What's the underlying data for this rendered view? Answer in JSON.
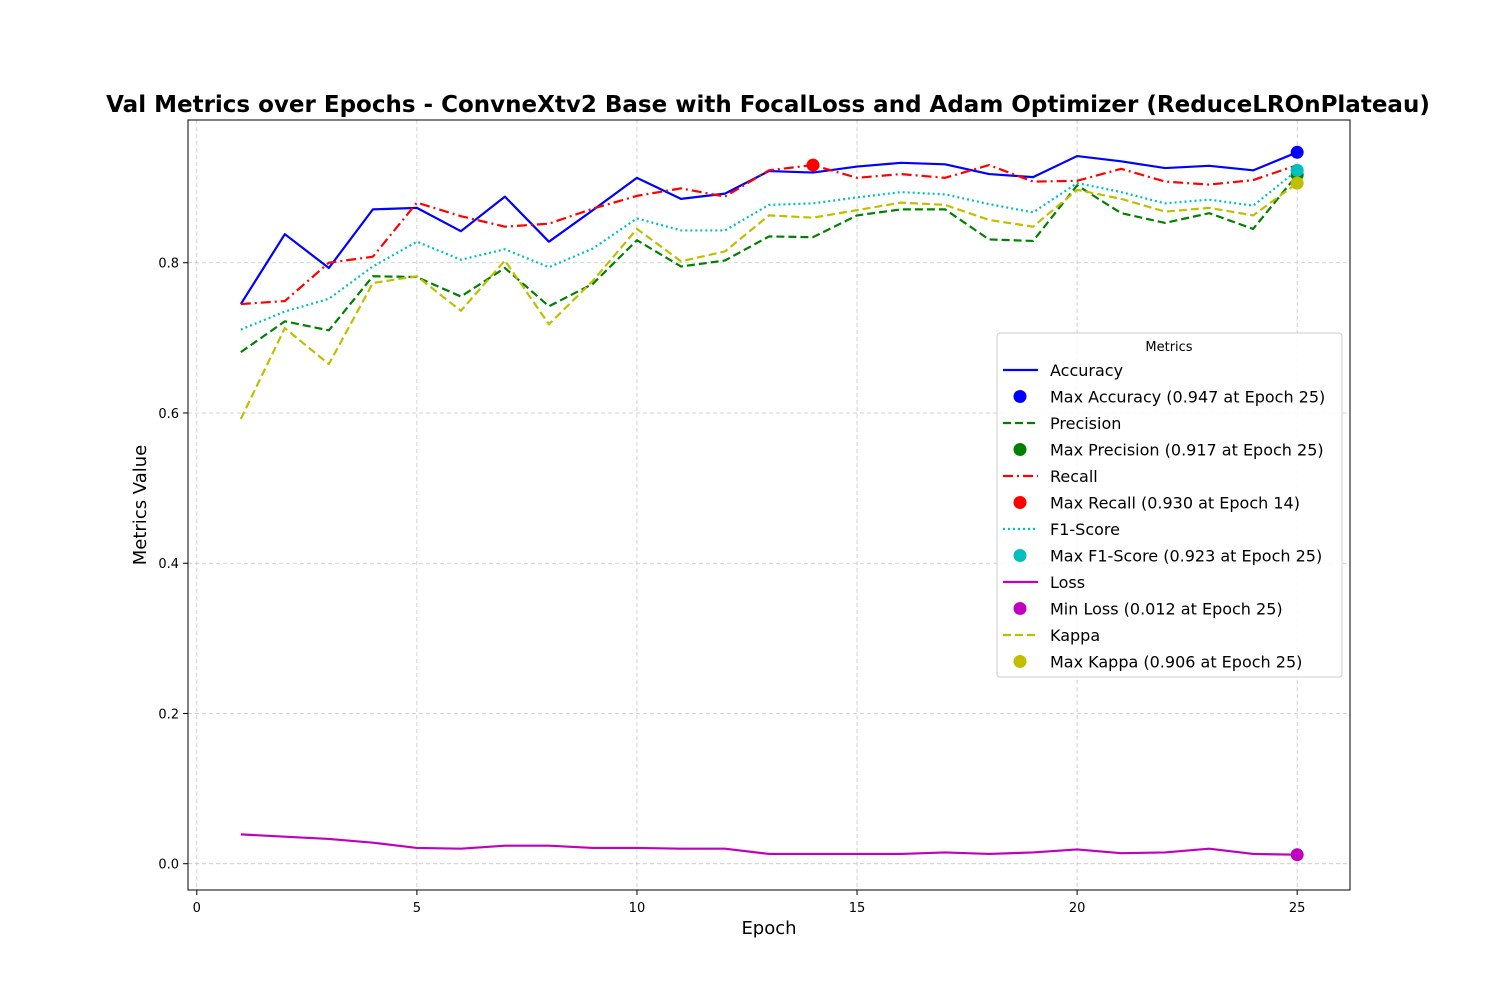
{
  "chart_data": {
    "type": "line",
    "title": "Val Metrics over Epochs - ConvneXtv2 Base with FocalLoss and Adam Optimizer (ReduceLROnPlateau)",
    "xlabel": "Epoch",
    "ylabel": "Metrics Value",
    "xlim": [
      -0.2,
      26.2
    ],
    "ylim": [
      -0.035,
      0.99
    ],
    "xticks": [
      0,
      5,
      10,
      15,
      20,
      25
    ],
    "yticks": [
      0.0,
      0.2,
      0.4,
      0.6,
      0.8
    ],
    "grid": true,
    "legend": {
      "title": "Metrics",
      "position": "right"
    },
    "x": [
      1,
      2,
      3,
      4,
      5,
      6,
      7,
      8,
      9,
      10,
      11,
      12,
      13,
      14,
      15,
      16,
      17,
      18,
      19,
      20,
      21,
      22,
      23,
      24,
      25
    ],
    "series": [
      {
        "name": "Accuracy",
        "color": "#0000ff",
        "style": "solid",
        "values": [
          0.745,
          0.838,
          0.793,
          0.871,
          0.873,
          0.842,
          0.888,
          0.828,
          0.87,
          0.913,
          0.885,
          0.892,
          0.922,
          0.92,
          0.928,
          0.933,
          0.931,
          0.918,
          0.914,
          0.942,
          0.935,
          0.926,
          0.929,
          0.923,
          0.947
        ],
        "marker": {
          "label": "Max Accuracy (0.947 at Epoch 25)",
          "x": 25,
          "y": 0.947
        }
      },
      {
        "name": "Precision",
        "color": "#008000",
        "style": "dashed",
        "values": [
          0.681,
          0.722,
          0.71,
          0.782,
          0.781,
          0.755,
          0.793,
          0.742,
          0.772,
          0.83,
          0.795,
          0.803,
          0.835,
          0.834,
          0.863,
          0.871,
          0.871,
          0.831,
          0.829,
          0.903,
          0.866,
          0.853,
          0.866,
          0.845,
          0.917
        ],
        "marker": {
          "label": "Max Precision (0.917 at Epoch 25)",
          "x": 25,
          "y": 0.917
        }
      },
      {
        "name": "Recall",
        "color": "#ff0000",
        "style": "dashdot",
        "values": [
          0.745,
          0.749,
          0.8,
          0.808,
          0.88,
          0.862,
          0.848,
          0.852,
          0.872,
          0.889,
          0.899,
          0.888,
          0.923,
          0.93,
          0.913,
          0.918,
          0.913,
          0.93,
          0.908,
          0.909,
          0.925,
          0.908,
          0.904,
          0.91,
          0.93
        ],
        "marker": {
          "label": "Max Recall (0.930 at Epoch 14)",
          "x": 14,
          "y": 0.93
        }
      },
      {
        "name": "F1-Score",
        "color": "#00bfbf",
        "style": "dotted",
        "values": [
          0.711,
          0.735,
          0.752,
          0.795,
          0.828,
          0.804,
          0.818,
          0.794,
          0.819,
          0.859,
          0.843,
          0.843,
          0.877,
          0.879,
          0.887,
          0.894,
          0.891,
          0.878,
          0.867,
          0.906,
          0.894,
          0.879,
          0.884,
          0.876,
          0.923
        ],
        "marker": {
          "label": "Max F1-Score (0.923 at Epoch 25)",
          "x": 25,
          "y": 0.923
        }
      },
      {
        "name": "Loss",
        "color": "#bf00bf",
        "style": "solid",
        "values": [
          0.039,
          0.036,
          0.033,
          0.028,
          0.021,
          0.02,
          0.024,
          0.024,
          0.021,
          0.021,
          0.02,
          0.02,
          0.013,
          0.013,
          0.013,
          0.013,
          0.015,
          0.013,
          0.015,
          0.019,
          0.014,
          0.015,
          0.02,
          0.013,
          0.012
        ],
        "marker": {
          "label": "Min Loss (0.012 at Epoch 25)",
          "x": 25,
          "y": 0.012
        }
      },
      {
        "name": "Kappa",
        "color": "#bfbf00",
        "style": "dashed",
        "values": [
          0.592,
          0.713,
          0.665,
          0.773,
          0.782,
          0.736,
          0.803,
          0.718,
          0.776,
          0.845,
          0.802,
          0.815,
          0.863,
          0.86,
          0.87,
          0.88,
          0.877,
          0.857,
          0.848,
          0.897,
          0.885,
          0.868,
          0.873,
          0.863,
          0.906
        ],
        "marker": {
          "label": "Max Kappa (0.906 at Epoch 25)",
          "x": 25,
          "y": 0.906
        }
      }
    ]
  }
}
